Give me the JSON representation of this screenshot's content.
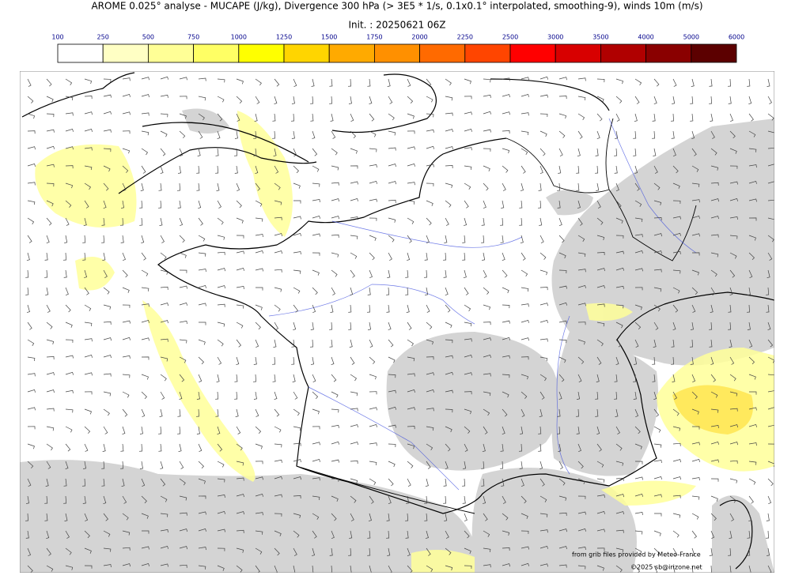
{
  "header": {
    "title": "AROME 0.025° analyse - MUCAPE (J/kg), Divergence 300 hPa (> 3E5 * 1/s, 0.1x0.1° interpolated, smoothing-9), winds 10m (m/s)",
    "init": "Init. : 20250621 06Z"
  },
  "legend": {
    "levels": [
      100,
      250,
      500,
      750,
      1000,
      1250,
      1500,
      1750,
      2000,
      2250,
      2500,
      3000,
      3500,
      4000,
      5000,
      6000
    ],
    "colors": [
      "#ffffff",
      "#ffffc4",
      "#ffff96",
      "#ffff64",
      "#ffff00",
      "#ffd500",
      "#ffaa00",
      "#ff9000",
      "#ff6a00",
      "#ff4500",
      "#ff0000",
      "#d80000",
      "#b00000",
      "#8a0000",
      "#5c0000"
    ]
  },
  "credits": {
    "source": "from grib files provided by Meteo-France",
    "copyright": "©2025 sb@irizone.net"
  }
}
